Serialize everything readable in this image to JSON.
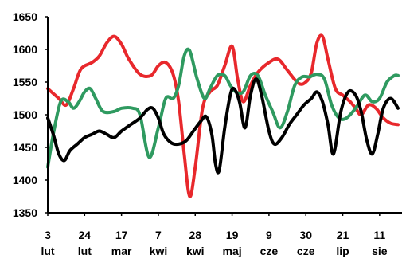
{
  "chart_data": {
    "type": "line",
    "title": "",
    "xlabel": "",
    "ylabel": "",
    "ylim": [
      1350,
      1650
    ],
    "yticks": [
      1350,
      1400,
      1450,
      1500,
      1550,
      1600,
      1650
    ],
    "grid": false,
    "legend": "none",
    "x_categories": [
      {
        "day": "3",
        "month": "lut"
      },
      {
        "day": "24",
        "month": "lut"
      },
      {
        "day": "17",
        "month": "mar"
      },
      {
        "day": "7",
        "month": "kwi"
      },
      {
        "day": "28",
        "month": "kwi"
      },
      {
        "day": "19",
        "month": "maj"
      },
      {
        "day": "9",
        "month": "cze"
      },
      {
        "day": "30",
        "month": "cze"
      },
      {
        "day": "21",
        "month": "lip"
      },
      {
        "day": "11",
        "month": "sie"
      }
    ],
    "series": [
      {
        "color": "#e8282c",
        "points": [
          [
            0.0,
            1540
          ],
          [
            0.3,
            1525
          ],
          [
            0.5,
            1515
          ],
          [
            0.7,
            1540
          ],
          [
            0.9,
            1570
          ],
          [
            1.2,
            1580
          ],
          [
            1.4,
            1590
          ],
          [
            1.6,
            1610
          ],
          [
            1.8,
            1620
          ],
          [
            2.0,
            1608
          ],
          [
            2.2,
            1585
          ],
          [
            2.5,
            1562
          ],
          [
            2.8,
            1560
          ],
          [
            3.0,
            1575
          ],
          [
            3.2,
            1580
          ],
          [
            3.4,
            1562
          ],
          [
            3.55,
            1520
          ],
          [
            3.7,
            1440
          ],
          [
            3.85,
            1375
          ],
          [
            4.0,
            1420
          ],
          [
            4.2,
            1510
          ],
          [
            4.4,
            1535
          ],
          [
            4.6,
            1545
          ],
          [
            4.8,
            1575
          ],
          [
            5.0,
            1605
          ],
          [
            5.15,
            1555
          ],
          [
            5.3,
            1520
          ],
          [
            5.5,
            1545
          ],
          [
            5.7,
            1565
          ],
          [
            6.0,
            1580
          ],
          [
            6.25,
            1585
          ],
          [
            6.5,
            1568
          ],
          [
            6.8,
            1548
          ],
          [
            7.0,
            1550
          ],
          [
            7.15,
            1565
          ],
          [
            7.3,
            1610
          ],
          [
            7.45,
            1620
          ],
          [
            7.6,
            1585
          ],
          [
            7.8,
            1540
          ],
          [
            8.0,
            1530
          ],
          [
            8.2,
            1520
          ],
          [
            8.35,
            1510
          ],
          [
            8.5,
            1500
          ],
          [
            8.7,
            1515
          ],
          [
            8.9,
            1510
          ],
          [
            9.1,
            1495
          ],
          [
            9.3,
            1487
          ],
          [
            9.5,
            1485
          ]
        ]
      },
      {
        "color": "#2f9a60",
        "points": [
          [
            0.0,
            1420
          ],
          [
            0.15,
            1470
          ],
          [
            0.35,
            1520
          ],
          [
            0.55,
            1520
          ],
          [
            0.7,
            1510
          ],
          [
            0.85,
            1520
          ],
          [
            1.0,
            1535
          ],
          [
            1.15,
            1540
          ],
          [
            1.3,
            1525
          ],
          [
            1.5,
            1505
          ],
          [
            1.8,
            1505
          ],
          [
            2.0,
            1510
          ],
          [
            2.3,
            1510
          ],
          [
            2.5,
            1500
          ],
          [
            2.75,
            1435
          ],
          [
            3.0,
            1480
          ],
          [
            3.2,
            1525
          ],
          [
            3.4,
            1525
          ],
          [
            3.55,
            1545
          ],
          [
            3.7,
            1590
          ],
          [
            3.85,
            1598
          ],
          [
            4.05,
            1555
          ],
          [
            4.25,
            1525
          ],
          [
            4.4,
            1540
          ],
          [
            4.6,
            1560
          ],
          [
            4.8,
            1560
          ],
          [
            4.95,
            1545
          ],
          [
            5.1,
            1535
          ],
          [
            5.3,
            1535
          ],
          [
            5.5,
            1560
          ],
          [
            5.7,
            1560
          ],
          [
            5.9,
            1530
          ],
          [
            6.1,
            1505
          ],
          [
            6.3,
            1480
          ],
          [
            6.5,
            1505
          ],
          [
            6.7,
            1545
          ],
          [
            6.9,
            1558
          ],
          [
            7.1,
            1558
          ],
          [
            7.3,
            1562
          ],
          [
            7.5,
            1555
          ],
          [
            7.7,
            1515
          ],
          [
            7.9,
            1495
          ],
          [
            8.1,
            1495
          ],
          [
            8.35,
            1510
          ],
          [
            8.6,
            1530
          ],
          [
            8.8,
            1520
          ],
          [
            9.0,
            1525
          ],
          [
            9.2,
            1550
          ],
          [
            9.4,
            1560
          ],
          [
            9.5,
            1560
          ]
        ]
      },
      {
        "color": "#000000",
        "points": [
          [
            0.0,
            1495
          ],
          [
            0.15,
            1470
          ],
          [
            0.3,
            1440
          ],
          [
            0.45,
            1430
          ],
          [
            0.6,
            1445
          ],
          [
            0.8,
            1455
          ],
          [
            1.0,
            1465
          ],
          [
            1.2,
            1470
          ],
          [
            1.4,
            1475
          ],
          [
            1.6,
            1470
          ],
          [
            1.8,
            1465
          ],
          [
            2.0,
            1475
          ],
          [
            2.25,
            1485
          ],
          [
            2.5,
            1495
          ],
          [
            2.7,
            1508
          ],
          [
            2.85,
            1510
          ],
          [
            3.0,
            1495
          ],
          [
            3.15,
            1470
          ],
          [
            3.35,
            1457
          ],
          [
            3.55,
            1455
          ],
          [
            3.75,
            1460
          ],
          [
            3.95,
            1475
          ],
          [
            4.15,
            1490
          ],
          [
            4.3,
            1497
          ],
          [
            4.45,
            1470
          ],
          [
            4.55,
            1425
          ],
          [
            4.65,
            1415
          ],
          [
            4.8,
            1480
          ],
          [
            4.95,
            1530
          ],
          [
            5.05,
            1540
          ],
          [
            5.2,
            1520
          ],
          [
            5.35,
            1480
          ],
          [
            5.5,
            1530
          ],
          [
            5.65,
            1555
          ],
          [
            5.8,
            1530
          ],
          [
            6.0,
            1475
          ],
          [
            6.15,
            1455
          ],
          [
            6.35,
            1465
          ],
          [
            6.55,
            1485
          ],
          [
            6.75,
            1500
          ],
          [
            6.95,
            1515
          ],
          [
            7.15,
            1525
          ],
          [
            7.3,
            1535
          ],
          [
            7.45,
            1520
          ],
          [
            7.6,
            1485
          ],
          [
            7.75,
            1440
          ],
          [
            7.95,
            1505
          ],
          [
            8.15,
            1535
          ],
          [
            8.35,
            1530
          ],
          [
            8.5,
            1505
          ],
          [
            8.65,
            1462
          ],
          [
            8.8,
            1440
          ],
          [
            8.95,
            1470
          ],
          [
            9.1,
            1510
          ],
          [
            9.3,
            1525
          ],
          [
            9.5,
            1510
          ]
        ]
      }
    ]
  }
}
